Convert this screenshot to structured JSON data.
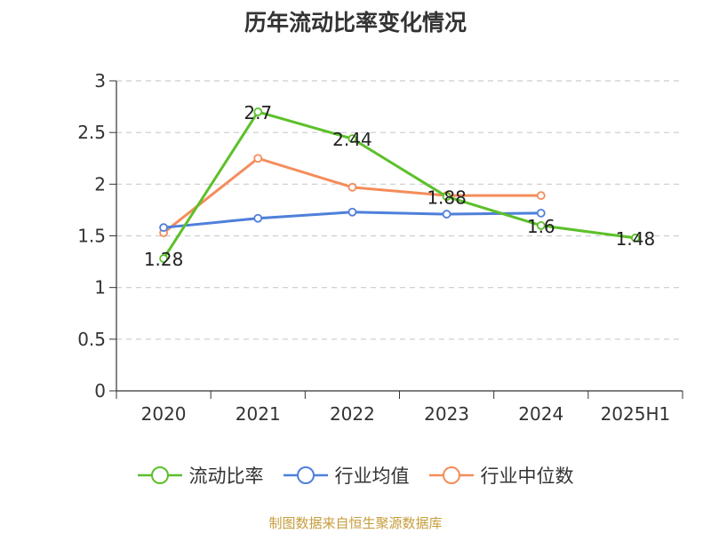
{
  "chart_data": {
    "type": "line",
    "title": "历年流动比率变化情况",
    "categories": [
      "2020",
      "2021",
      "2022",
      "2023",
      "2024",
      "2025H1"
    ],
    "ylim": [
      0,
      3
    ],
    "yticks": [
      "0",
      "0.5",
      "1",
      "1.5",
      "2",
      "2.5",
      "3"
    ],
    "grid": true,
    "legend_position": "bottom",
    "series": [
      {
        "name": "流动比率",
        "color": "#5cc02a",
        "values": [
          1.28,
          2.7,
          2.44,
          1.88,
          1.6,
          1.48
        ],
        "labels": [
          "1.28",
          "2.7",
          "2.44",
          "1.88",
          "1.6",
          "1.48"
        ]
      },
      {
        "name": "行业均值",
        "color": "#4f7fdb",
        "values": [
          1.58,
          1.67,
          1.73,
          1.71,
          1.72,
          null
        ]
      },
      {
        "name": "行业中位数",
        "color": "#f58c5a",
        "values": [
          1.53,
          2.25,
          1.97,
          1.89,
          1.89,
          null
        ]
      }
    ]
  },
  "source": "制图数据来自恒生聚源数据库"
}
